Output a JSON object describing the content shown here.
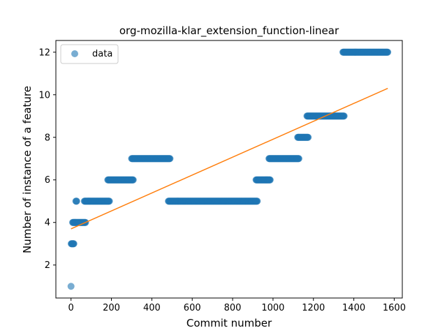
{
  "chart_data": {
    "type": "scatter",
    "title": "org-mozilla-klar_extension_function-linear",
    "xlabel": "Commit number",
    "ylabel": "Number of instance of a feature",
    "xlim": [
      -75,
      1640
    ],
    "ylim": [
      0.45,
      12.55
    ],
    "xticks": [
      0,
      200,
      400,
      600,
      800,
      1000,
      1200,
      1400,
      1600
    ],
    "yticks": [
      2,
      4,
      6,
      8,
      10,
      12
    ],
    "grid": false,
    "legend": {
      "position": "top-left",
      "entries": [
        "data"
      ]
    },
    "colors": {
      "data": "#1f77b4",
      "fit": "#ff7f0e"
    },
    "series": [
      {
        "name": "data",
        "kind": "scatter",
        "segments": [
          {
            "x_start": 0,
            "x_end": 0,
            "y": 1
          },
          {
            "x_start": 1,
            "x_end": 14,
            "y": 3
          },
          {
            "x_start": 8,
            "x_end": 20,
            "y": 4
          },
          {
            "x_start": 24,
            "x_end": 28,
            "y": 5
          },
          {
            "x_start": 20,
            "x_end": 72,
            "y": 4
          },
          {
            "x_start": 66,
            "x_end": 190,
            "y": 5
          },
          {
            "x_start": 182,
            "x_end": 308,
            "y": 6
          },
          {
            "x_start": 300,
            "x_end": 490,
            "y": 7
          },
          {
            "x_start": 482,
            "x_end": 922,
            "y": 5
          },
          {
            "x_start": 916,
            "x_end": 986,
            "y": 6
          },
          {
            "x_start": 980,
            "x_end": 1128,
            "y": 7
          },
          {
            "x_start": 1122,
            "x_end": 1174,
            "y": 8
          },
          {
            "x_start": 1168,
            "x_end": 1352,
            "y": 9
          },
          {
            "x_start": 1346,
            "x_end": 1568,
            "y": 12
          }
        ]
      },
      {
        "kind": "line",
        "x": [
          0,
          1568
        ],
        "y": [
          3.7,
          10.3
        ]
      }
    ]
  }
}
